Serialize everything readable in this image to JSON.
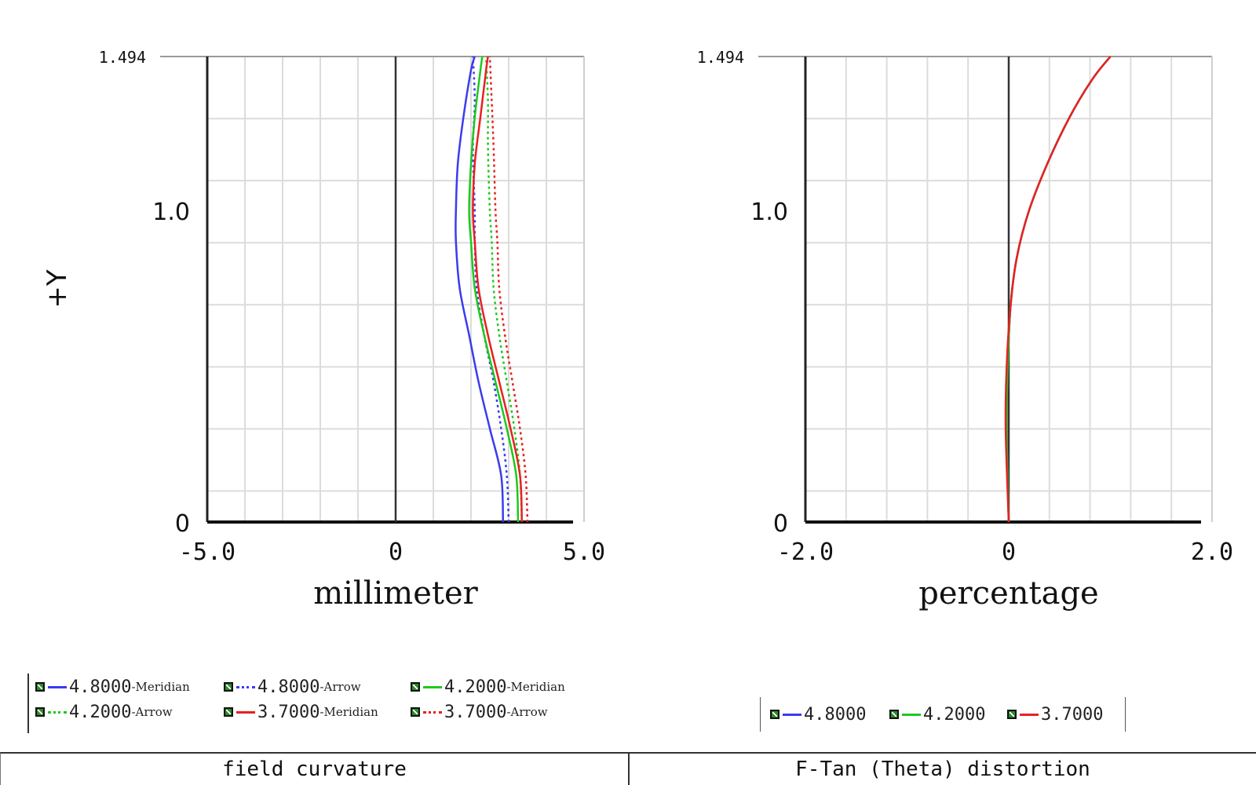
{
  "chart_data": [
    {
      "type": "line",
      "title": "",
      "xlabel": "millimeter",
      "ylabel": "+Y",
      "xlim": [
        -5.0,
        5.0
      ],
      "ylim": [
        0,
        1.494
      ],
      "xticks": [
        "-5.0",
        "0",
        "5.0"
      ],
      "yticks": [
        "0",
        "1.0",
        "1.494"
      ],
      "grid": true,
      "series": [
        {
          "name": "4.8000-Meridian",
          "color": "#3b3bf0",
          "dash": "solid",
          "points": [
            [
              2.85,
              0
            ],
            [
              2.8,
              0.15
            ],
            [
              2.5,
              0.3
            ],
            [
              2.2,
              0.45
            ],
            [
              1.95,
              0.6
            ],
            [
              1.7,
              0.75
            ],
            [
              1.6,
              0.9
            ],
            [
              1.6,
              1.0
            ],
            [
              1.65,
              1.15
            ],
            [
              1.8,
              1.3
            ],
            [
              2.0,
              1.45
            ],
            [
              2.1,
              1.494
            ]
          ]
        },
        {
          "name": "4.8000-Arrow",
          "color": "#3b3bf0",
          "dash": "dotted",
          "points": [
            [
              3.0,
              0
            ],
            [
              2.95,
              0.15
            ],
            [
              2.8,
              0.3
            ],
            [
              2.6,
              0.45
            ],
            [
              2.35,
              0.6
            ],
            [
              2.15,
              0.75
            ],
            [
              2.1,
              0.9
            ],
            [
              2.1,
              1.0
            ],
            [
              2.05,
              1.2
            ],
            [
              2.1,
              1.35
            ],
            [
              2.05,
              1.494
            ]
          ]
        },
        {
          "name": "4.2000-Meridian",
          "color": "#1ec81e",
          "dash": "solid",
          "points": [
            [
              3.25,
              0
            ],
            [
              3.2,
              0.15
            ],
            [
              2.95,
              0.3
            ],
            [
              2.65,
              0.45
            ],
            [
              2.35,
              0.6
            ],
            [
              2.1,
              0.75
            ],
            [
              2.0,
              0.9
            ],
            [
              1.95,
              1.0
            ],
            [
              2.0,
              1.15
            ],
            [
              2.1,
              1.3
            ],
            [
              2.25,
              1.45
            ],
            [
              2.3,
              1.494
            ]
          ]
        },
        {
          "name": "4.2000-Arrow",
          "color": "#1ec81e",
          "dash": "dotted",
          "points": [
            [
              3.35,
              0
            ],
            [
              3.3,
              0.15
            ],
            [
              3.15,
              0.3
            ],
            [
              2.95,
              0.45
            ],
            [
              2.75,
              0.6
            ],
            [
              2.6,
              0.75
            ],
            [
              2.55,
              0.9
            ],
            [
              2.5,
              1.0
            ],
            [
              2.45,
              1.2
            ],
            [
              2.45,
              1.35
            ],
            [
              2.4,
              1.494
            ]
          ]
        },
        {
          "name": "3.7000-Meridian",
          "color": "#e82020",
          "dash": "solid",
          "points": [
            [
              3.35,
              0
            ],
            [
              3.3,
              0.15
            ],
            [
              3.05,
              0.3
            ],
            [
              2.75,
              0.45
            ],
            [
              2.45,
              0.6
            ],
            [
              2.2,
              0.75
            ],
            [
              2.1,
              0.9
            ],
            [
              2.05,
              1.0
            ],
            [
              2.1,
              1.15
            ],
            [
              2.25,
              1.3
            ],
            [
              2.4,
              1.45
            ],
            [
              2.45,
              1.494
            ]
          ]
        },
        {
          "name": "3.7000-Arrow",
          "color": "#e82020",
          "dash": "dotted",
          "points": [
            [
              3.5,
              0
            ],
            [
              3.45,
              0.15
            ],
            [
              3.3,
              0.3
            ],
            [
              3.1,
              0.45
            ],
            [
              2.9,
              0.6
            ],
            [
              2.75,
              0.75
            ],
            [
              2.7,
              0.9
            ],
            [
              2.65,
              1.0
            ],
            [
              2.6,
              1.2
            ],
            [
              2.55,
              1.35
            ],
            [
              2.5,
              1.494
            ]
          ]
        }
      ]
    },
    {
      "type": "line",
      "title": "",
      "xlabel": "percentage",
      "ylabel": "",
      "xlim": [
        -2.0,
        2.0
      ],
      "ylim": [
        0,
        1.494
      ],
      "xticks": [
        "-2.0",
        "0",
        "2.0"
      ],
      "yticks": [
        "0",
        "1.0",
        "1.494"
      ],
      "grid": true,
      "series": [
        {
          "name": "4.8000",
          "color": "#3b3bf0",
          "dash": "solid",
          "points": [
            [
              0,
              0
            ],
            [
              -0.02,
              0.3
            ],
            [
              -0.01,
              0.5
            ],
            [
              0.02,
              0.7
            ],
            [
              0.08,
              0.85
            ],
            [
              0.2,
              1.0
            ],
            [
              0.38,
              1.15
            ],
            [
              0.6,
              1.3
            ],
            [
              0.82,
              1.42
            ],
            [
              1.0,
              1.494
            ]
          ]
        },
        {
          "name": "4.2000",
          "color": "#1ec81e",
          "dash": "solid",
          "points": [
            [
              0,
              0
            ],
            [
              -0.02,
              0.3
            ],
            [
              -0.01,
              0.5
            ],
            [
              0.02,
              0.7
            ],
            [
              0.08,
              0.85
            ],
            [
              0.2,
              1.0
            ],
            [
              0.38,
              1.15
            ],
            [
              0.6,
              1.3
            ],
            [
              0.82,
              1.42
            ],
            [
              1.0,
              1.494
            ]
          ]
        },
        {
          "name": "3.7000",
          "color": "#e82020",
          "dash": "solid",
          "points": [
            [
              0,
              0
            ],
            [
              -0.03,
              0.3
            ],
            [
              -0.02,
              0.5
            ],
            [
              0.02,
              0.7
            ],
            [
              0.08,
              0.85
            ],
            [
              0.2,
              1.0
            ],
            [
              0.38,
              1.15
            ],
            [
              0.6,
              1.3
            ],
            [
              0.82,
              1.42
            ],
            [
              1.0,
              1.494
            ]
          ]
        }
      ]
    }
  ],
  "legend_left": [
    {
      "value": "4.8000",
      "suffix": "-Meridian",
      "color": "#3b3bf0",
      "dash": "solid"
    },
    {
      "value": "4.8000",
      "suffix": "-Arrow",
      "color": "#3b3bf0",
      "dash": "dotted"
    },
    {
      "value": "4.2000",
      "suffix": "-Meridian",
      "color": "#1ec81e",
      "dash": "solid"
    },
    {
      "value": "4.2000",
      "suffix": "-Arrow",
      "color": "#1ec81e",
      "dash": "dotted"
    },
    {
      "value": "3.7000",
      "suffix": "-Meridian",
      "color": "#e82020",
      "dash": "solid"
    },
    {
      "value": "3.7000",
      "suffix": "-Arrow",
      "color": "#e82020",
      "dash": "dotted"
    }
  ],
  "legend_right": [
    {
      "value": "4.8000",
      "color": "#3b3bf0"
    },
    {
      "value": "4.2000",
      "color": "#1ec81e"
    },
    {
      "value": "3.7000",
      "color": "#e82020"
    }
  ],
  "footer": {
    "left_label": "field curvature",
    "right_label": "F-Tan (Theta) distortion"
  }
}
